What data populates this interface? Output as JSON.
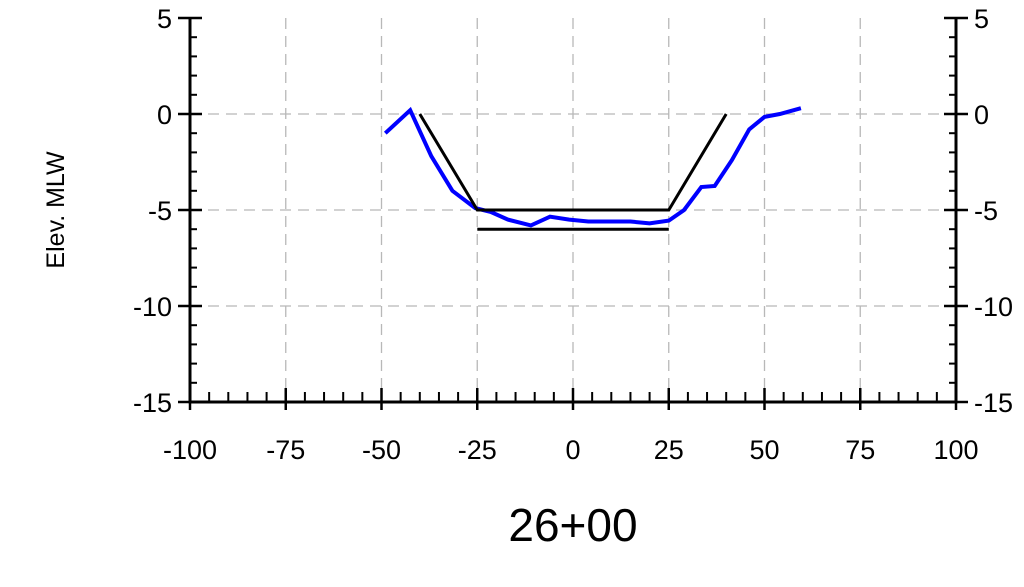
{
  "chart_data": {
    "type": "line",
    "title": "26+00",
    "xlabel": "",
    "ylabel": "Elev. MLW",
    "xlim": [
      -100,
      100
    ],
    "ylim": [
      -15,
      5
    ],
    "xticks": [
      -100,
      -75,
      -50,
      -25,
      0,
      25,
      50,
      75,
      100
    ],
    "yticks": [
      5,
      0,
      -5,
      -10,
      -15
    ],
    "xtick_labels": [
      "-100",
      "-75",
      "-50",
      "-25",
      "0",
      "25",
      "50",
      "75",
      "100"
    ],
    "ytick_labels": [
      "5",
      "0",
      "-5",
      "-10",
      "-15"
    ],
    "right_ytick_labels": [
      "5",
      "0",
      "-5",
      "-10",
      "-15"
    ],
    "grid": true,
    "series": [
      {
        "role": "surveyed-profile",
        "color": "#0000ff",
        "points": [
          [
            -49,
            -1.0
          ],
          [
            -42.5,
            0.2
          ],
          [
            -37,
            -2.2
          ],
          [
            -31.5,
            -4.0
          ],
          [
            -25.5,
            -4.9
          ],
          [
            -21.5,
            -5.1
          ],
          [
            -17,
            -5.5
          ],
          [
            -11,
            -5.8
          ],
          [
            -6,
            -5.35
          ],
          [
            -1,
            -5.5
          ],
          [
            4,
            -5.6
          ],
          [
            10,
            -5.6
          ],
          [
            15,
            -5.6
          ],
          [
            20,
            -5.7
          ],
          [
            25,
            -5.55
          ],
          [
            29,
            -5.0
          ],
          [
            33.5,
            -3.8
          ],
          [
            37,
            -3.75
          ],
          [
            41.5,
            -2.4
          ],
          [
            46,
            -0.8
          ],
          [
            50,
            -0.15
          ],
          [
            54,
            0.0
          ],
          [
            59.5,
            0.3
          ]
        ]
      },
      {
        "role": "design-template",
        "color": "#000000",
        "points": [
          [
            -40,
            0
          ],
          [
            -25,
            -5
          ],
          [
            25,
            -5
          ],
          [
            40,
            0
          ]
        ]
      },
      {
        "role": "overdepth-line",
        "color": "#000000",
        "points": [
          [
            -25,
            -6
          ],
          [
            25,
            -6
          ]
        ]
      }
    ]
  }
}
